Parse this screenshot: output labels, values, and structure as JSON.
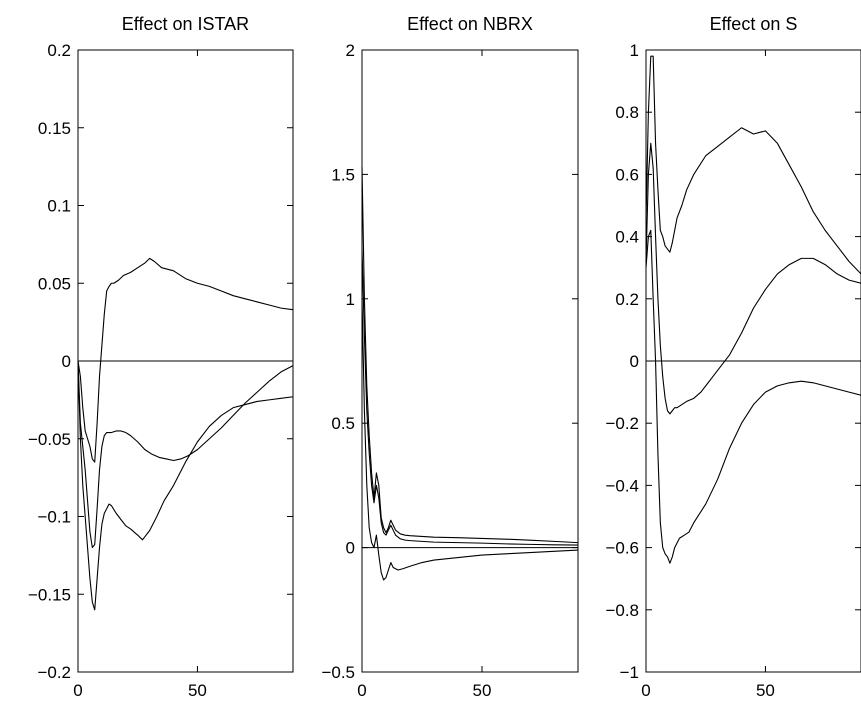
{
  "figure": {
    "background": "#ffffff",
    "line_color": "#000000"
  },
  "chart_data": [
    {
      "type": "line",
      "title": "Effect on ISTAR",
      "xlabel": "",
      "ylabel": "",
      "xlim": [
        0,
        90
      ],
      "ylim": [
        -0.2,
        0.2
      ],
      "xticks": [
        0,
        50
      ],
      "yticks": [
        -0.2,
        -0.15,
        -0.1,
        -0.05,
        0,
        0.05,
        0.1,
        0.15,
        0.2
      ],
      "ytick_labels": [
        "−0.2",
        "−0.15",
        "−0.1",
        "−0.05",
        "0",
        "0.05",
        "0.1",
        "0.15",
        "0.2"
      ],
      "xtick_labels": [
        "0",
        "50"
      ],
      "zero_line": true,
      "grid": false,
      "series": [
        {
          "x": [
            0,
            1,
            2,
            3,
            4,
            5,
            6,
            7,
            8,
            9,
            10,
            11,
            12,
            13,
            14,
            15,
            17,
            19,
            22,
            25,
            28,
            30,
            32,
            35,
            40,
            45,
            50,
            55,
            60,
            65,
            70,
            75,
            80,
            85,
            90
          ],
          "y": [
            0,
            -0.01,
            -0.03,
            -0.045,
            -0.05,
            -0.055,
            -0.063,
            -0.065,
            -0.04,
            -0.01,
            0.01,
            0.03,
            0.045,
            0.048,
            0.05,
            0.05,
            0.052,
            0.055,
            0.057,
            0.06,
            0.063,
            0.066,
            0.064,
            0.06,
            0.058,
            0.053,
            0.05,
            0.048,
            0.045,
            0.042,
            0.04,
            0.038,
            0.036,
            0.034,
            0.033
          ]
        },
        {
          "x": [
            0,
            1,
            2,
            3,
            4,
            5,
            6,
            7,
            8,
            9,
            10,
            11,
            12,
            14,
            16,
            18,
            20,
            22,
            25,
            28,
            31,
            34,
            37,
            40,
            43,
            46,
            50,
            55,
            60,
            65,
            70,
            75,
            80,
            85,
            90
          ],
          "y": [
            0,
            -0.04,
            -0.055,
            -0.07,
            -0.09,
            -0.11,
            -0.12,
            -0.118,
            -0.095,
            -0.07,
            -0.055,
            -0.048,
            -0.046,
            -0.046,
            -0.045,
            -0.045,
            -0.046,
            -0.048,
            -0.052,
            -0.057,
            -0.06,
            -0.062,
            -0.063,
            -0.064,
            -0.063,
            -0.061,
            -0.057,
            -0.05,
            -0.043,
            -0.035,
            -0.027,
            -0.02,
            -0.013,
            -0.007,
            -0.003
          ]
        },
        {
          "x": [
            0,
            1,
            2,
            3,
            4,
            5,
            6,
            7,
            8,
            9,
            10,
            11,
            12,
            13,
            14,
            16,
            18,
            20,
            22,
            25,
            27,
            28,
            30,
            33,
            36,
            40,
            45,
            50,
            55,
            60,
            65,
            70,
            75,
            80,
            85,
            90
          ],
          "y": [
            0,
            -0.05,
            -0.08,
            -0.1,
            -0.12,
            -0.14,
            -0.155,
            -0.16,
            -0.14,
            -0.12,
            -0.105,
            -0.098,
            -0.095,
            -0.092,
            -0.093,
            -0.098,
            -0.102,
            -0.106,
            -0.108,
            -0.112,
            -0.115,
            -0.113,
            -0.109,
            -0.1,
            -0.09,
            -0.08,
            -0.065,
            -0.052,
            -0.042,
            -0.035,
            -0.03,
            -0.028,
            -0.026,
            -0.025,
            -0.024,
            -0.023
          ]
        }
      ]
    },
    {
      "type": "line",
      "title": "Effect on NBRX",
      "xlabel": "",
      "ylabel": "",
      "xlim": [
        0,
        90
      ],
      "ylim": [
        -0.5,
        2
      ],
      "xticks": [
        0,
        50
      ],
      "yticks": [
        -0.5,
        0,
        0.5,
        1,
        1.5,
        2
      ],
      "ytick_labels": [
        "−0.5",
        "0",
        "0.5",
        "1",
        "1.5",
        "2"
      ],
      "xtick_labels": [
        "0",
        "50"
      ],
      "zero_line": true,
      "grid": false,
      "series": [
        {
          "x": [
            0,
            1,
            2,
            3,
            4,
            5,
            6,
            7,
            8,
            9,
            10,
            11,
            12,
            13,
            14,
            16,
            18,
            20,
            25,
            30,
            40,
            50,
            60,
            70,
            80,
            90
          ],
          "y": [
            1.53,
            1.0,
            0.65,
            0.45,
            0.3,
            0.2,
            0.3,
            0.25,
            0.12,
            0.08,
            0.06,
            0.08,
            0.11,
            0.09,
            0.07,
            0.055,
            0.05,
            0.048,
            0.045,
            0.042,
            0.04,
            0.037,
            0.034,
            0.03,
            0.025,
            0.02
          ]
        },
        {
          "x": [
            0,
            1,
            2,
            3,
            4,
            5,
            6,
            7,
            8,
            9,
            10,
            11,
            12,
            13,
            14,
            16,
            18,
            20,
            25,
            30,
            40,
            50,
            60,
            70,
            80,
            90
          ],
          "y": [
            1.2,
            0.85,
            0.55,
            0.38,
            0.25,
            0.18,
            0.25,
            0.2,
            0.1,
            0.06,
            0.05,
            0.07,
            0.09,
            0.07,
            0.05,
            0.035,
            0.03,
            0.028,
            0.025,
            0.022,
            0.02,
            0.018,
            0.015,
            0.013,
            0.011,
            0.01
          ]
        },
        {
          "x": [
            0,
            1,
            2,
            3,
            4,
            5,
            6,
            7,
            8,
            9,
            10,
            11,
            12,
            13,
            15,
            17,
            20,
            25,
            30,
            40,
            50,
            60,
            70,
            80,
            90
          ],
          "y": [
            1.0,
            0.55,
            0.25,
            0.08,
            0.02,
            0.0,
            0.05,
            -0.03,
            -0.1,
            -0.13,
            -0.12,
            -0.09,
            -0.06,
            -0.08,
            -0.09,
            -0.085,
            -0.075,
            -0.06,
            -0.05,
            -0.04,
            -0.03,
            -0.025,
            -0.02,
            -0.015,
            -0.01
          ]
        }
      ]
    },
    {
      "type": "line",
      "title": "Effect on S",
      "xlabel": "",
      "ylabel": "",
      "xlim": [
        0,
        90
      ],
      "ylim": [
        -1,
        1
      ],
      "xticks": [
        0,
        50
      ],
      "yticks": [
        -1,
        -0.8,
        -0.6,
        -0.4,
        -0.2,
        0,
        0.2,
        0.4,
        0.6,
        0.8,
        1
      ],
      "ytick_labels": [
        "−1",
        "−0.8",
        "−0.6",
        "−0.4",
        "−0.2",
        "0",
        "0.2",
        "0.4",
        "0.6",
        "0.8",
        "1"
      ],
      "xtick_labels": [
        "0",
        "50"
      ],
      "zero_line": true,
      "grid": false,
      "series": [
        {
          "x": [
            0,
            1,
            2,
            3,
            4,
            5,
            6,
            7,
            8,
            9,
            10,
            11,
            12,
            13,
            15,
            17,
            20,
            25,
            30,
            35,
            40,
            45,
            50,
            55,
            60,
            65,
            70,
            75,
            80,
            85,
            90
          ],
          "y": [
            0.45,
            0.8,
            0.98,
            0.98,
            0.7,
            0.55,
            0.42,
            0.4,
            0.37,
            0.36,
            0.35,
            0.38,
            0.42,
            0.46,
            0.5,
            0.55,
            0.6,
            0.66,
            0.69,
            0.72,
            0.75,
            0.73,
            0.74,
            0.7,
            0.63,
            0.56,
            0.48,
            0.42,
            0.37,
            0.32,
            0.28
          ]
        },
        {
          "x": [
            0,
            1,
            2,
            3,
            4,
            5,
            6,
            7,
            8,
            9,
            10,
            11,
            12,
            13,
            15,
            17,
            20,
            23,
            26,
            30,
            35,
            40,
            45,
            50,
            55,
            60,
            65,
            70,
            75,
            80,
            85,
            90
          ],
          "y": [
            0.32,
            0.6,
            0.7,
            0.62,
            0.4,
            0.2,
            0.05,
            -0.05,
            -0.12,
            -0.16,
            -0.17,
            -0.16,
            -0.15,
            -0.15,
            -0.14,
            -0.13,
            -0.12,
            -0.1,
            -0.07,
            -0.03,
            0.02,
            0.09,
            0.17,
            0.23,
            0.28,
            0.31,
            0.33,
            0.33,
            0.31,
            0.28,
            0.26,
            0.25
          ]
        },
        {
          "x": [
            0,
            1,
            2,
            3,
            4,
            5,
            6,
            7,
            8,
            9,
            10,
            11,
            12,
            14,
            16,
            18,
            20,
            25,
            30,
            35,
            40,
            45,
            50,
            55,
            60,
            65,
            70,
            75,
            80,
            85,
            90
          ],
          "y": [
            0.3,
            0.4,
            0.42,
            0.2,
            0.0,
            -0.3,
            -0.52,
            -0.6,
            -0.62,
            -0.63,
            -0.65,
            -0.63,
            -0.6,
            -0.57,
            -0.56,
            -0.55,
            -0.52,
            -0.46,
            -0.38,
            -0.28,
            -0.2,
            -0.14,
            -0.1,
            -0.08,
            -0.07,
            -0.065,
            -0.07,
            -0.08,
            -0.09,
            -0.1,
            -0.11
          ]
        }
      ]
    }
  ]
}
